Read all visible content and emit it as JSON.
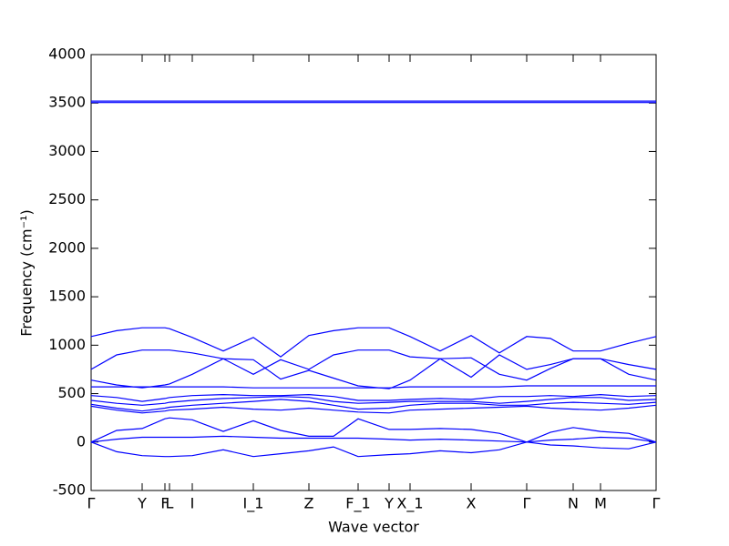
{
  "chart_data": {
    "type": "line",
    "x_label": "Wave vector",
    "y_label": "Frequency (cm⁻¹)",
    "xlim": [
      0,
      6.2
    ],
    "ylim": [
      -500,
      4000
    ],
    "yticks": [
      -500,
      0,
      500,
      1000,
      1500,
      2000,
      2500,
      3000,
      3500,
      4000
    ],
    "xticks": [
      {
        "value": 0,
        "label": "Γ"
      },
      {
        "value": 0.56,
        "label": "Y"
      },
      {
        "value": 0.81,
        "label": "F"
      },
      {
        "value": 0.86,
        "label": "L"
      },
      {
        "value": 1.11,
        "label": "I"
      },
      {
        "value": 1.78,
        "label": "I_1"
      },
      {
        "value": 2.39,
        "label": "Z"
      },
      {
        "value": 2.93,
        "label": "F_1"
      },
      {
        "value": 3.27,
        "label": "Y"
      },
      {
        "value": 3.5,
        "label": "X_1"
      },
      {
        "value": 4.17,
        "label": "X"
      },
      {
        "value": 4.78,
        "label": "Γ"
      },
      {
        "value": 5.29,
        "label": "N"
      },
      {
        "value": 5.59,
        "label": "M"
      },
      {
        "value": 6.2,
        "label": "Γ"
      }
    ],
    "x": [
      0,
      0.28,
      0.56,
      0.81,
      0.86,
      1.11,
      1.45,
      1.78,
      2.08,
      2.39,
      2.66,
      2.93,
      3.27,
      3.5,
      3.83,
      4.17,
      4.48,
      4.78,
      5.04,
      5.29,
      5.59,
      5.9,
      6.2
    ],
    "color": "#0000ff",
    "series": [
      {
        "values": [
          3520,
          3520,
          3520,
          3520,
          3520,
          3520,
          3520,
          3520,
          3520,
          3520,
          3520,
          3520,
          3520,
          3520,
          3520,
          3520,
          3520,
          3520,
          3520,
          3520,
          3520,
          3520,
          3520
        ]
      },
      {
        "values": [
          3505,
          3505,
          3505,
          3505,
          3505,
          3505,
          3505,
          3505,
          3505,
          3505,
          3505,
          3505,
          3505,
          3505,
          3505,
          3505,
          3505,
          3505,
          3505,
          3505,
          3505,
          3505,
          3505
        ]
      },
      {
        "values": [
          1090,
          1150,
          1180,
          1180,
          1170,
          1080,
          940,
          1080,
          880,
          1100,
          1150,
          1180,
          1180,
          1090,
          940,
          1100,
          920,
          1090,
          1070,
          940,
          940,
          1020,
          1090
        ]
      },
      {
        "values": [
          750,
          900,
          950,
          950,
          950,
          920,
          860,
          700,
          850,
          750,
          900,
          950,
          950,
          880,
          860,
          670,
          900,
          750,
          800,
          860,
          860,
          800,
          750
        ]
      },
      {
        "values": [
          640,
          590,
          560,
          590,
          600,
          700,
          860,
          850,
          650,
          740,
          660,
          580,
          550,
          640,
          860,
          870,
          700,
          640,
          760,
          860,
          860,
          700,
          640
        ]
      },
      {
        "values": [
          570,
          570,
          570,
          570,
          570,
          570,
          570,
          560,
          560,
          560,
          560,
          560,
          560,
          570,
          570,
          570,
          570,
          580,
          580,
          580,
          580,
          580,
          580
        ]
      },
      {
        "values": [
          480,
          460,
          420,
          450,
          460,
          480,
          490,
          480,
          480,
          490,
          470,
          430,
          430,
          440,
          450,
          440,
          470,
          470,
          480,
          470,
          490,
          470,
          480
        ]
      },
      {
        "values": [
          430,
          400,
          380,
          400,
          410,
          430,
          450,
          460,
          470,
          460,
          420,
          400,
          410,
          420,
          420,
          420,
          400,
          420,
          440,
          460,
          460,
          430,
          440
        ]
      },
      {
        "values": [
          390,
          350,
          320,
          350,
          360,
          380,
          400,
          420,
          440,
          420,
          380,
          340,
          350,
          380,
          400,
          400,
          380,
          380,
          400,
          410,
          400,
          390,
          410
        ]
      },
      {
        "values": [
          370,
          330,
          300,
          320,
          330,
          340,
          360,
          340,
          330,
          350,
          330,
          310,
          300,
          330,
          340,
          350,
          360,
          370,
          350,
          340,
          330,
          350,
          380
        ]
      },
      {
        "values": [
          0,
          120,
          140,
          240,
          250,
          230,
          110,
          220,
          120,
          60,
          60,
          240,
          130,
          130,
          140,
          130,
          90,
          0,
          100,
          150,
          110,
          90,
          0
        ]
      },
      {
        "values": [
          0,
          30,
          50,
          50,
          50,
          50,
          60,
          50,
          40,
          40,
          40,
          40,
          30,
          20,
          30,
          20,
          10,
          0,
          20,
          30,
          50,
          40,
          0
        ]
      },
      {
        "values": [
          0,
          -100,
          -140,
          -150,
          -150,
          -140,
          -80,
          -150,
          -120,
          -90,
          -50,
          -150,
          -130,
          -120,
          -90,
          -110,
          -80,
          0,
          -30,
          -40,
          -60,
          -70,
          0
        ]
      }
    ]
  }
}
